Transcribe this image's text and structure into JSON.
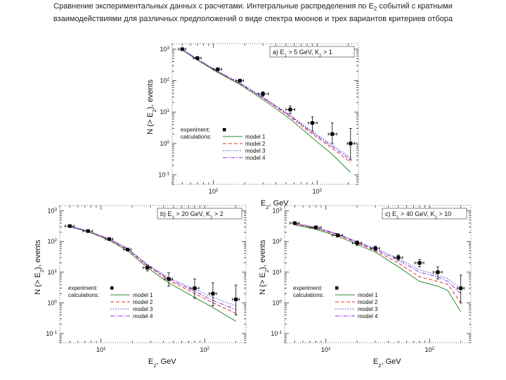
{
  "title": {
    "line1_pre": "Сравнение экспериментальных данных с расчетами. Интегральные распределения по E",
    "line1_sub": "2",
    "line1_post": " событий с кратными",
    "line2": "взаимодействиями для различных предположений о виде спектра мюонов и трех вариантов критериев отбора"
  },
  "legend": {
    "experiment": "experiment:",
    "calculations": "calculations:",
    "models": [
      "model 1",
      "model 2",
      "model 3",
      "model 4"
    ]
  },
  "colors": {
    "experiment": "#000000",
    "model1": "#2e8b2e",
    "model2": "#e0302a",
    "model3": "#3a3ad0",
    "model4": "#8a2be2"
  },
  "chart_data": [
    {
      "type": "scatter",
      "panel": "a) E1 > 5 GeV, K2 > 1",
      "xscale": "log",
      "yscale": "log",
      "xlabel": "E2, GeV",
      "ylabel": "N (> E2), events",
      "xlim": [
        4,
        250
      ],
      "ylim": [
        0.05,
        1500
      ],
      "xticks": [
        10,
        100
      ],
      "yticks": [
        0.1,
        1,
        10,
        100,
        1000
      ],
      "series": [
        {
          "name": "experiment:",
          "x": [
            5,
            7,
            11,
            18,
            30,
            55,
            90,
            140,
            210
          ],
          "y": [
            1000,
            520,
            230,
            100,
            38,
            12,
            4.5,
            2,
            1
          ],
          "xerr_lo": [
            0.4,
            0.6,
            1,
            1.5,
            3,
            5,
            8,
            12,
            15
          ],
          "xerr_hi": [
            0.4,
            0.6,
            1,
            1.5,
            4,
            6,
            10,
            15,
            20
          ],
          "yerr_lo": [
            30,
            20,
            15,
            10,
            6,
            3,
            2,
            1,
            0.7
          ],
          "yerr_hi": [
            30,
            20,
            15,
            10,
            6,
            3.5,
            2.5,
            2.5,
            2
          ]
        },
        {
          "name": "model 1",
          "x": [
            5,
            7,
            11,
            18,
            30,
            55,
            90,
            140,
            210
          ],
          "y": [
            950,
            450,
            180,
            75,
            25,
            6,
            1.5,
            0.45,
            0.12
          ]
        },
        {
          "name": "model 2",
          "x": [
            5,
            7,
            11,
            18,
            30,
            55,
            90,
            140,
            210
          ],
          "y": [
            980,
            470,
            190,
            80,
            28,
            7,
            2,
            0.7,
            0.25
          ]
        },
        {
          "name": "model 3",
          "x": [
            5,
            7,
            11,
            18,
            30,
            55,
            90,
            140,
            210
          ],
          "y": [
            1000,
            480,
            200,
            85,
            30,
            8,
            2.4,
            0.9,
            0.35
          ]
        },
        {
          "name": "model 4",
          "x": [
            5,
            7,
            11,
            18,
            30,
            55,
            90,
            140,
            210
          ],
          "y": [
            990,
            475,
            195,
            82,
            29,
            7.5,
            2.2,
            0.8,
            0.3
          ]
        }
      ]
    },
    {
      "type": "scatter",
      "panel": "b) E1 > 20 GeV, K2 > 2",
      "xscale": "log",
      "yscale": "log",
      "xlabel": "E2, GeV",
      "ylabel": "N (> E2), events",
      "xlim": [
        4,
        250
      ],
      "ylim": [
        0.05,
        1500
      ],
      "xticks": [
        10,
        100
      ],
      "yticks": [
        0.1,
        1,
        10,
        100,
        1000
      ],
      "series": [
        {
          "name": "experiment:",
          "x": [
            5,
            7.5,
            12,
            18,
            28,
            45,
            80,
            120,
            200
          ],
          "y": [
            320,
            220,
            120,
            55,
            14,
            6,
            3,
            2,
            1.3
          ],
          "xerr_lo": [
            0.5,
            0.8,
            1,
            1.5,
            2.5,
            4,
            8,
            10,
            15
          ],
          "xerr_hi": [
            0.5,
            0.8,
            1,
            1.5,
            2.5,
            4,
            8,
            10,
            15
          ],
          "yerr_lo": [
            15,
            10,
            8,
            5,
            3,
            2.5,
            1.6,
            1.2,
            0.9
          ],
          "yerr_hi": [
            15,
            10,
            8,
            5,
            3,
            3.5,
            3,
            2.5,
            2.5
          ]
        },
        {
          "name": "model 1",
          "x": [
            5,
            7.5,
            12,
            18,
            28,
            45,
            80,
            120,
            200
          ],
          "y": [
            300,
            210,
            110,
            50,
            14,
            4.5,
            1.5,
            0.7,
            0.25
          ]
        },
        {
          "name": "model 2",
          "x": [
            5,
            7.5,
            12,
            18,
            28,
            45,
            80,
            120,
            200
          ],
          "y": [
            310,
            215,
            115,
            55,
            16,
            5.5,
            2,
            1,
            0.45
          ]
        },
        {
          "name": "model 3",
          "x": [
            5,
            7.5,
            12,
            18,
            28,
            45,
            80,
            120,
            200
          ],
          "y": [
            320,
            220,
            125,
            60,
            18,
            6.5,
            2.8,
            1.5,
            0.8
          ]
        },
        {
          "name": "model 4",
          "x": [
            5,
            7.5,
            12,
            18,
            28,
            45,
            80,
            120,
            200
          ],
          "y": [
            315,
            218,
            120,
            58,
            17,
            6,
            2.4,
            1.2,
            0.6
          ]
        }
      ]
    },
    {
      "type": "scatter",
      "panel": "c) E1 > 40 GeV, K2 > 10",
      "xscale": "log",
      "yscale": "log",
      "xlabel": "E2, GeV",
      "ylabel": "N (> E2), events",
      "xlim": [
        4,
        250
      ],
      "ylim": [
        0.05,
        1500
      ],
      "xticks": [
        10,
        100
      ],
      "yticks": [
        0.1,
        1,
        10,
        100,
        1000
      ],
      "series": [
        {
          "name": "experiment:",
          "x": [
            5,
            8,
            13,
            20,
            30,
            50,
            80,
            120,
            200
          ],
          "y": [
            400,
            290,
            160,
            90,
            60,
            30,
            20,
            10,
            3
          ],
          "xerr_lo": [
            0.5,
            1,
            1.5,
            2,
            3,
            5,
            8,
            12,
            15
          ],
          "xerr_hi": [
            0.5,
            1,
            1.5,
            2,
            3,
            5,
            8,
            12,
            15
          ],
          "yerr_lo": [
            40,
            30,
            20,
            15,
            10,
            6,
            5,
            4,
            2
          ],
          "yerr_hi": [
            40,
            30,
            20,
            15,
            10,
            6,
            6,
            5,
            5
          ]
        },
        {
          "name": "model 1",
          "x": [
            5,
            8,
            13,
            20,
            30,
            50,
            80,
            120,
            150,
            200
          ],
          "y": [
            350,
            250,
            150,
            80,
            45,
            15,
            5,
            3.5,
            2.5,
            0.5
          ]
        },
        {
          "name": "model 2",
          "x": [
            5,
            8,
            13,
            20,
            30,
            50,
            80,
            120,
            150,
            200
          ],
          "y": [
            370,
            270,
            165,
            90,
            50,
            20,
            7,
            5,
            4,
            1
          ]
        },
        {
          "name": "model 3",
          "x": [
            5,
            8,
            13,
            20,
            30,
            50,
            80,
            120,
            150,
            200
          ],
          "y": [
            400,
            290,
            180,
            100,
            60,
            28,
            12,
            8,
            6,
            3
          ]
        },
        {
          "name": "model 4",
          "x": [
            5,
            8,
            13,
            20,
            30,
            50,
            80,
            120,
            150,
            200
          ],
          "y": [
            390,
            280,
            175,
            95,
            55,
            25,
            10,
            7,
            5,
            2
          ]
        }
      ]
    }
  ]
}
